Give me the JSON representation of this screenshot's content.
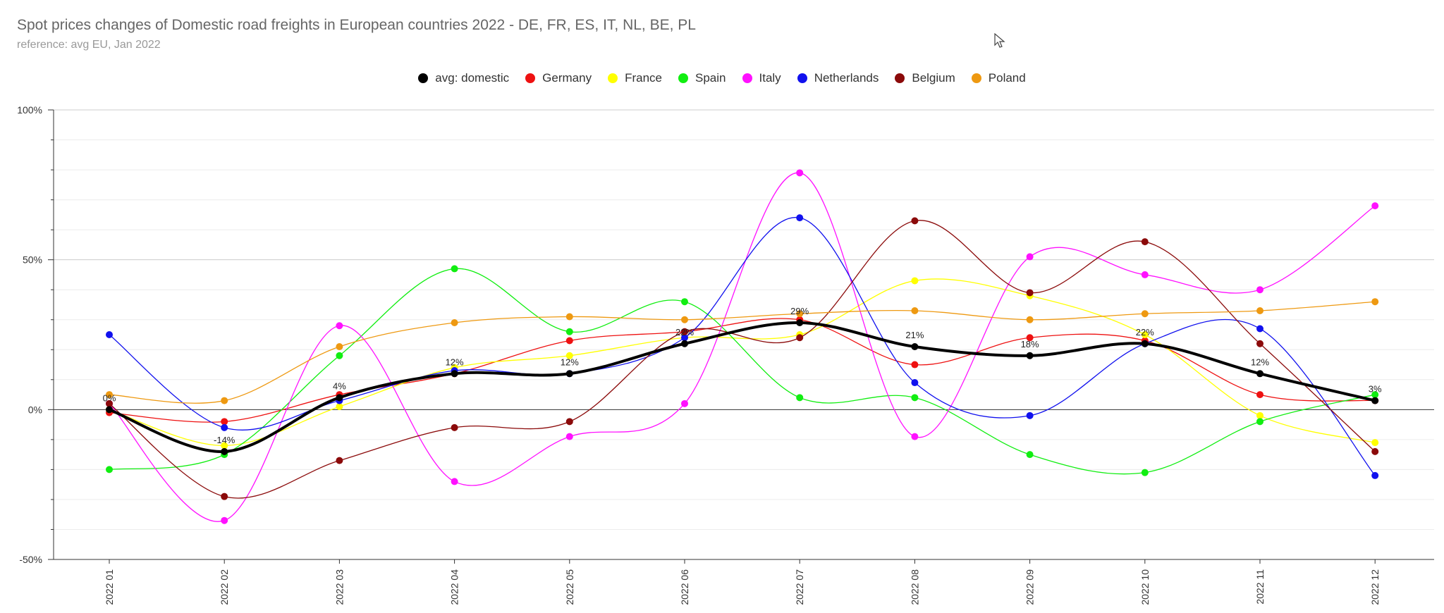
{
  "title": "Spot prices changes of Domestic road freights in European countries 2022 - DE, FR, ES, IT, NL, BE, PL",
  "subtitle": "reference: avg EU, Jan 2022",
  "chart_data": {
    "type": "line",
    "title": "Spot prices changes of Domestic road freights in European countries 2022 - DE, FR, ES, IT, NL, BE, PL",
    "subtitle": "reference: avg EU, Jan 2022",
    "xlabel": "",
    "ylabel": "",
    "ylim": [
      -50,
      100
    ],
    "y_ticks": [
      "100%",
      "50%",
      "0%",
      "-50%"
    ],
    "y_tick_values": [
      100,
      50,
      0,
      -50
    ],
    "grid": true,
    "legend_position": "top-center",
    "categories": [
      "2022 01",
      "2022 02",
      "2022 03",
      "2022 04",
      "2022 05",
      "2022 06",
      "2022 07",
      "2022 08",
      "2022 09",
      "2022 10",
      "2022 11",
      "2022 12"
    ],
    "series": [
      {
        "name": "Germany",
        "color": "#ee1111",
        "values": [
          -1,
          -4,
          5,
          12,
          23,
          26,
          30,
          15,
          24,
          23,
          5,
          3
        ]
      },
      {
        "name": "France",
        "color": "#ffff00",
        "values": [
          0,
          -12,
          1,
          14,
          18,
          24,
          25,
          43,
          38,
          25,
          -2,
          -11
        ]
      },
      {
        "name": "Spain",
        "color": "#11ee11",
        "values": [
          -20,
          -15,
          18,
          47,
          26,
          36,
          4,
          4,
          -15,
          -21,
          -4,
          5
        ]
      },
      {
        "name": "Italy",
        "color": "#ff11ff",
        "values": [
          2,
          -37,
          28,
          -24,
          -9,
          2,
          79,
          -9,
          51,
          45,
          40,
          68
        ]
      },
      {
        "name": "Netherlands",
        "color": "#1111ee",
        "values": [
          25,
          -6,
          3,
          13,
          12,
          24,
          64,
          9,
          -2,
          22,
          27,
          -22
        ]
      },
      {
        "name": "Belgium",
        "color": "#8b0a0a",
        "values": [
          2,
          -29,
          -17,
          -6,
          -4,
          26,
          24,
          63,
          39,
          56,
          22,
          -14
        ]
      },
      {
        "name": "Poland",
        "color": "#ee9911",
        "values": [
          5,
          3,
          21,
          29,
          31,
          30,
          32,
          33,
          30,
          32,
          33,
          36
        ]
      },
      {
        "name": "avg: domestic",
        "color": "#000000",
        "values": [
          0,
          -14,
          4,
          12,
          12,
          22,
          29,
          21,
          18,
          22,
          12,
          3
        ],
        "data_labels": [
          "0%",
          "-14%",
          "4%",
          "12%",
          "12%",
          "22%",
          "29%",
          "21%",
          "18%",
          "22%",
          "12%",
          "3%"
        ]
      }
    ]
  },
  "legend": [
    {
      "label": "avg: domestic",
      "color": "#000000"
    },
    {
      "label": "Germany",
      "color": "#ee1111"
    },
    {
      "label": "France",
      "color": "#ffff00"
    },
    {
      "label": "Spain",
      "color": "#11ee11"
    },
    {
      "label": "Italy",
      "color": "#ff11ff"
    },
    {
      "label": "Netherlands",
      "color": "#1111ee"
    },
    {
      "label": "Belgium",
      "color": "#8b0a0a"
    },
    {
      "label": "Poland",
      "color": "#ee9911"
    }
  ]
}
